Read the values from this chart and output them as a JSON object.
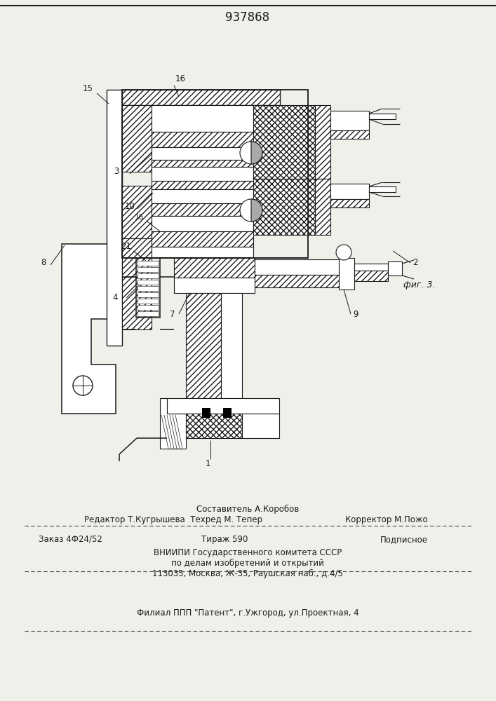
{
  "patent_number": "937868",
  "figure_label": "фиг. 3.",
  "bg_color": "#f0f0eb",
  "line_color": "#1a1a1a",
  "footer": {
    "line1": "Составитель А.Коробов",
    "line2a": "Редактор Т.Кугрышева  Техред М. Тепер",
    "line2b": "Корректор М.Пожо",
    "line3a": "Заказ 4Ф24/52",
    "line3b": "Тираж 590",
    "line3c": "Подписное",
    "line4": "ВНИИПИ Государственного комитета СССР",
    "line5": "по делам изобретений и открытий",
    "line6": "113035, Москва, Ж-35, Раушская наб., д.4/5",
    "line7": "Филиал ППП \"Патент\", г.Ужгород, ул.Проектная, 4"
  }
}
